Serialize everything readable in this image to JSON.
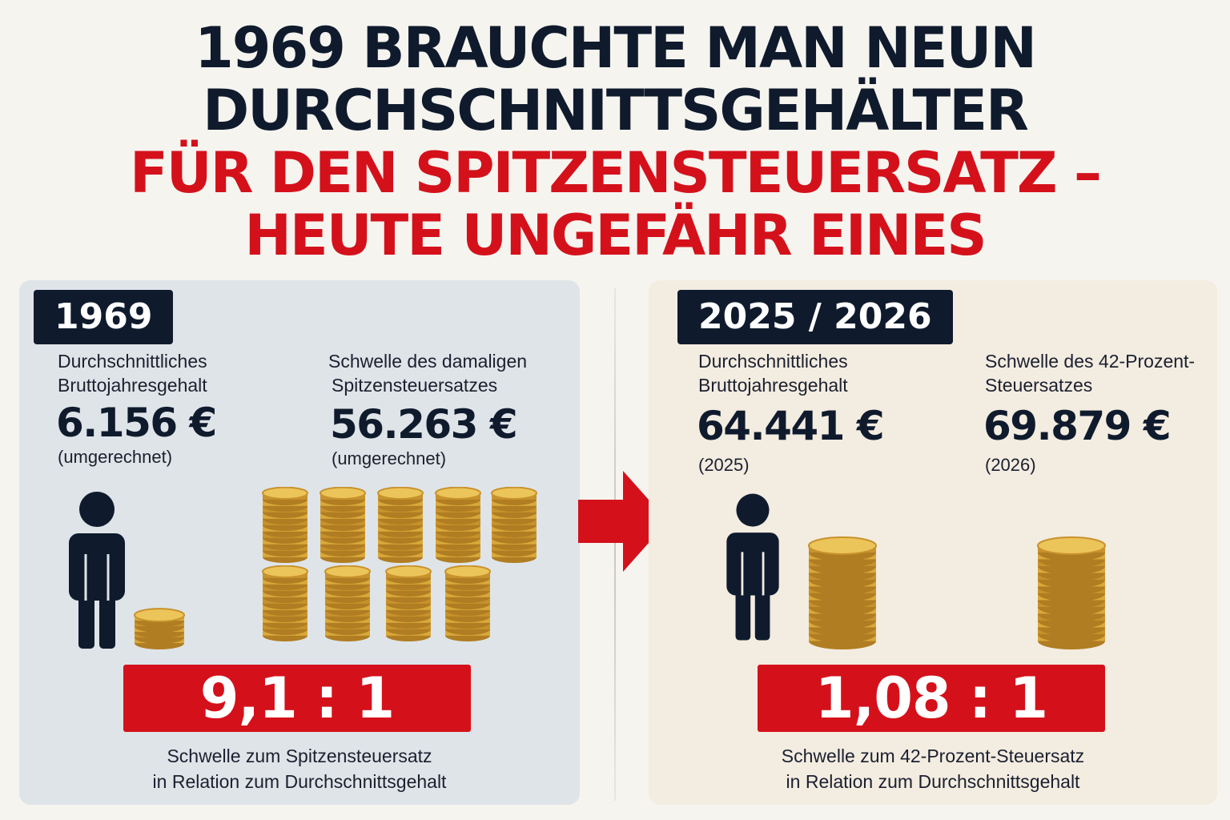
{
  "headline": {
    "line1": "1969 BRAUCHTE MAN NEUN",
    "line2": "DURCHSCHNITTSGEHÄLTER",
    "line3": "FÜR DEN SPITZENSTEUERSATZ –",
    "line4": "HEUTE UNGEFÄHR EINES"
  },
  "colors": {
    "dark": "#0f1b2d",
    "red": "#d4111b",
    "left_panel": "#dfe4e8",
    "right_panel": "#f3ece0",
    "gold": "#d8a93a"
  },
  "left": {
    "year": "1969",
    "salary_label_1": "Durchschnittliches",
    "salary_label_2": "Bruttojahresgehalt",
    "salary_value": "6.156 €",
    "salary_note": "(umgerechnet)",
    "threshold_label_1": "Schwelle des damaligen",
    "threshold_label_2": "Spitzensteuersatzes",
    "threshold_value": "56.263 €",
    "threshold_note": "(umgerechnet)",
    "ratio": "9,1 : 1",
    "caption_1": "Schwelle zum Spitzensteuersatz",
    "caption_2": "in Relation zum Durchschnittsgehalt"
  },
  "right": {
    "year": "2025 / 2026",
    "salary_label_1": "Durchschnittliches",
    "salary_label_2": "Bruttojahresgehalt",
    "salary_value": "64.441 €",
    "salary_note": "(2025)",
    "threshold_label_1": "Schwelle des 42-Prozent-",
    "threshold_label_2": "Steuersatzes",
    "threshold_value": "69.879 €",
    "threshold_note": "(2026)",
    "ratio": "1,08 : 1",
    "caption_1": "Schwelle zum 42-Prozent-Steuersatz",
    "caption_2": "in Relation zum Durchschnittsgehalt"
  },
  "icons": [
    "person-icon",
    "coin-stack-icon",
    "arrow-right-icon"
  ]
}
